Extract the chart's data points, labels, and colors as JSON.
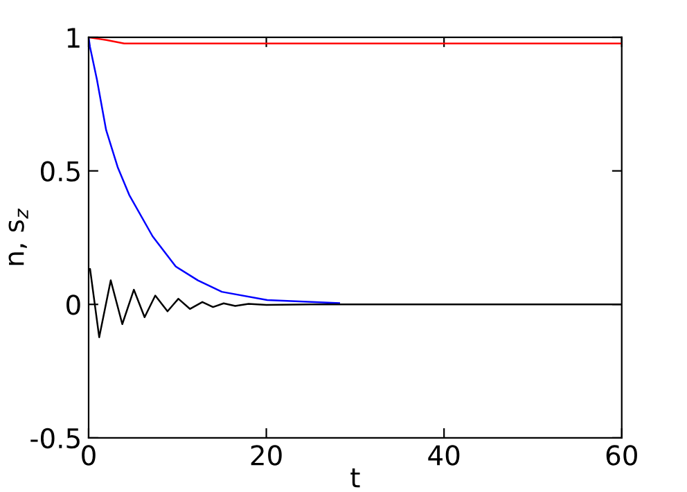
{
  "chart_data": {
    "type": "line",
    "xlabel": "t",
    "ylabel": "n, s$_{z}$",
    "xlim": [
      0,
      60
    ],
    "ylim": [
      -0.5,
      1
    ],
    "xticks": [
      0,
      20,
      40,
      60
    ],
    "yticks": [
      -0.5,
      0,
      0.5,
      1
    ],
    "grid": false,
    "legend": false,
    "marker": "none",
    "line_style": "solid",
    "series": [
      {
        "color": "#ff0000",
        "x": [
          0,
          1,
          2,
          4,
          10,
          30,
          60
        ],
        "values": [
          1,
          0.995,
          0.99,
          0.977,
          0.977,
          0.977,
          0.977
        ]
      },
      {
        "color": "#0000ff",
        "x": [
          0,
          0.15,
          0.93,
          1.97,
          3.27,
          4.57,
          7.2,
          9.8,
          12.3,
          15,
          20.1,
          28.2
        ],
        "values": [
          1,
          0.965,
          0.843,
          0.653,
          0.514,
          0.41,
          0.255,
          0.142,
          0.09,
          0.047,
          0.016,
          0.005
        ]
      },
      {
        "color": "#000000",
        "x": [
          0,
          0.16,
          1.19,
          2.49,
          3.79,
          5.09,
          6.3,
          7.5,
          8.88,
          10.1,
          11.4,
          12.8,
          14,
          15.2,
          16.5,
          18,
          20,
          25,
          60
        ],
        "values": [
          0.13,
          0.133,
          -0.123,
          0.09,
          -0.074,
          0.055,
          -0.048,
          0.033,
          -0.026,
          0.021,
          -0.017,
          0.009,
          -0.01,
          0.004,
          -0.006,
          0.002,
          -0.002,
          0,
          0
        ]
      }
    ]
  }
}
